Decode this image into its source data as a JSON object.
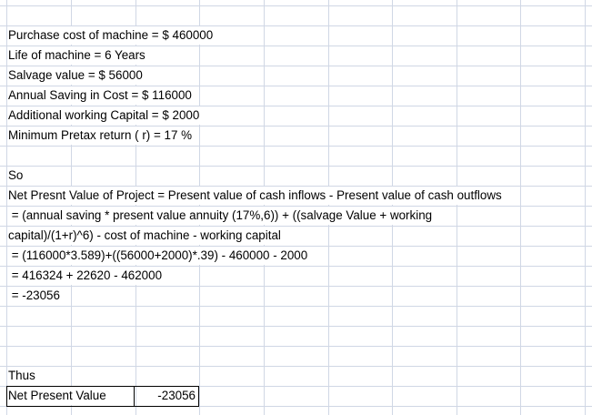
{
  "sheet": {
    "lines": [
      "Purchase cost of machine = $ 460000",
      "Life of machine = 6 Years",
      "Salvage value = $ 56000",
      "Annual Saving in Cost = $ 116000",
      "Additional working Capital = $ 2000",
      "Minimum Pretax return ( r) = 17 %",
      "So",
      "Net Presnt Value of Project = Present value of cash inflows - Present value of cash outflows",
      " = (annual saving * present value annuity (17%,6)) + ((salvage Value + working",
      "capital)/(1+r)^6) - cost of machine - working capital",
      " = (116000*3.589)+((56000+2000)*.39) - 460000 - 2000",
      " = 416324 + 22620 - 462000",
      " = -23056",
      "Thus"
    ],
    "result": {
      "label": "Net Present Value",
      "value": -23056
    }
  }
}
